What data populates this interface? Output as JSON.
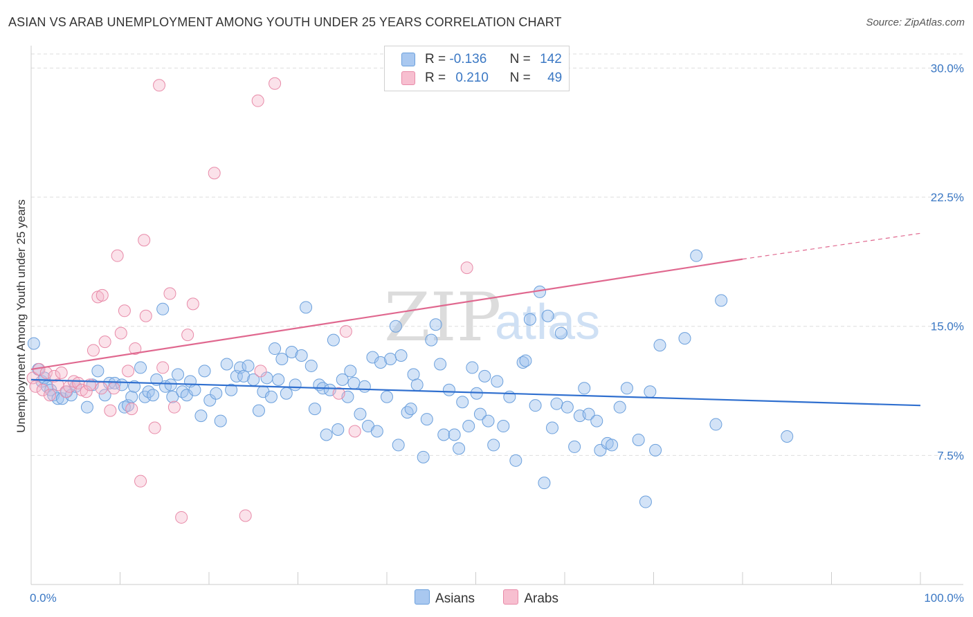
{
  "title": "ASIAN VS ARAB UNEMPLOYMENT AMONG YOUTH UNDER 25 YEARS CORRELATION CHART",
  "source": "Source: ZipAtlas.com",
  "watermark": {
    "zip": "ZIP",
    "atlas": "atlas"
  },
  "legend": {
    "rows": [
      {
        "r_label": "R =",
        "r_value": "-0.136",
        "n_label": "N =",
        "n_value": "142",
        "color": "#a9c8f0",
        "border": "#6a9fdc"
      },
      {
        "r_label": "R =",
        "r_value": "0.210",
        "n_label": "N =",
        "n_value": "49",
        "color": "#f7bfd0",
        "border": "#e88aa8"
      }
    ]
  },
  "bottom_legend": [
    {
      "label": "Asians",
      "color": "#a9c8f0",
      "border": "#6a9fdc"
    },
    {
      "label": "Arabs",
      "color": "#f7bfd0",
      "border": "#e88aa8"
    }
  ],
  "colors": {
    "asian_fill": "rgba(158,193,238,0.45)",
    "asian_stroke": "#6a9fdc",
    "asian_line": "#2f6fcf",
    "arab_fill": "rgba(246,182,202,0.40)",
    "arab_stroke": "#e88aa8",
    "arab_line": "#e0688f",
    "tick_label": "#3b78c4",
    "grid": "#dddddd"
  },
  "chart_data": {
    "type": "scatter",
    "title": "ASIAN VS ARAB UNEMPLOYMENT AMONG YOUTH UNDER 25 YEARS CORRELATION CHART",
    "xlabel": "",
    "ylabel": "Unemployment Among Youth under 25 years",
    "xlim": [
      0,
      100
    ],
    "ylim": [
      0,
      30.9
    ],
    "x_ticks": [
      "0.0%",
      "100.0%"
    ],
    "y_ticks": [
      {
        "value": 7.5,
        "label": "7.5%"
      },
      {
        "value": 15.0,
        "label": "15.0%"
      },
      {
        "value": 22.5,
        "label": "22.5%"
      },
      {
        "value": 30.0,
        "label": "30.0%"
      }
    ],
    "grid": true,
    "series": [
      {
        "name": "Asians",
        "points": [
          [
            0.3,
            14.0
          ],
          [
            0.8,
            12.5
          ],
          [
            1.2,
            11.8
          ],
          [
            1.5,
            12.0
          ],
          [
            1.8,
            11.5
          ],
          [
            2.2,
            11.3
          ],
          [
            2.5,
            11.0
          ],
          [
            3.0,
            10.8
          ],
          [
            3.5,
            10.8
          ],
          [
            4.0,
            11.2
          ],
          [
            4.5,
            11.0
          ],
          [
            5.0,
            11.5
          ],
          [
            6.3,
            10.3
          ],
          [
            6.9,
            11.6
          ],
          [
            7.5,
            12.4
          ],
          [
            8.3,
            11.0
          ],
          [
            8.8,
            11.7
          ],
          [
            9.4,
            11.7
          ],
          [
            10.2,
            11.6
          ],
          [
            10.5,
            10.3
          ],
          [
            10.9,
            10.4
          ],
          [
            11.3,
            10.9
          ],
          [
            11.6,
            11.5
          ],
          [
            12.3,
            12.6
          ],
          [
            12.8,
            10.9
          ],
          [
            13.2,
            11.2
          ],
          [
            13.7,
            11.0
          ],
          [
            14.1,
            11.9
          ],
          [
            14.8,
            16.0
          ],
          [
            15.1,
            11.5
          ],
          [
            15.7,
            11.6
          ],
          [
            15.9,
            10.9
          ],
          [
            16.5,
            12.2
          ],
          [
            17.0,
            11.2
          ],
          [
            17.5,
            11.0
          ],
          [
            17.9,
            11.8
          ],
          [
            18.4,
            11.3
          ],
          [
            19.1,
            9.8
          ],
          [
            19.5,
            12.4
          ],
          [
            20.1,
            10.7
          ],
          [
            20.8,
            11.1
          ],
          [
            21.3,
            9.5
          ],
          [
            22.0,
            12.8
          ],
          [
            22.5,
            11.3
          ],
          [
            23.1,
            12.1
          ],
          [
            23.5,
            12.6
          ],
          [
            23.9,
            12.1
          ],
          [
            24.4,
            12.7
          ],
          [
            25.0,
            11.9
          ],
          [
            25.6,
            10.1
          ],
          [
            26.1,
            11.2
          ],
          [
            26.5,
            12.0
          ],
          [
            27.0,
            10.9
          ],
          [
            27.4,
            13.7
          ],
          [
            27.8,
            11.9
          ],
          [
            28.2,
            13.1
          ],
          [
            28.7,
            11.1
          ],
          [
            29.3,
            13.5
          ],
          [
            29.7,
            11.6
          ],
          [
            30.4,
            13.3
          ],
          [
            30.9,
            16.1
          ],
          [
            31.5,
            12.7
          ],
          [
            31.9,
            10.2
          ],
          [
            32.4,
            11.6
          ],
          [
            32.8,
            11.4
          ],
          [
            33.2,
            8.7
          ],
          [
            33.6,
            11.3
          ],
          [
            34.0,
            14.2
          ],
          [
            34.5,
            9.0
          ],
          [
            35.0,
            11.9
          ],
          [
            35.6,
            10.9
          ],
          [
            35.9,
            12.4
          ],
          [
            36.3,
            11.7
          ],
          [
            37.0,
            9.9
          ],
          [
            37.5,
            11.5
          ],
          [
            37.9,
            9.2
          ],
          [
            38.4,
            13.2
          ],
          [
            38.9,
            8.9
          ],
          [
            39.3,
            12.9
          ],
          [
            40.0,
            10.9
          ],
          [
            40.4,
            13.1
          ],
          [
            41.0,
            15.0
          ],
          [
            41.3,
            8.1
          ],
          [
            41.6,
            13.3
          ],
          [
            42.3,
            10.0
          ],
          [
            42.7,
            10.2
          ],
          [
            43.0,
            12.2
          ],
          [
            43.4,
            11.6
          ],
          [
            44.1,
            7.4
          ],
          [
            44.5,
            9.6
          ],
          [
            45.0,
            14.2
          ],
          [
            45.5,
            15.1
          ],
          [
            46.0,
            12.8
          ],
          [
            46.4,
            8.7
          ],
          [
            47.0,
            11.3
          ],
          [
            47.6,
            8.7
          ],
          [
            48.1,
            7.9
          ],
          [
            48.5,
            10.6
          ],
          [
            49.2,
            9.2
          ],
          [
            49.6,
            12.6
          ],
          [
            50.1,
            11.1
          ],
          [
            50.5,
            9.9
          ],
          [
            51.0,
            12.1
          ],
          [
            51.4,
            9.5
          ],
          [
            52.0,
            8.1
          ],
          [
            52.4,
            11.8
          ],
          [
            53.1,
            9.2
          ],
          [
            53.8,
            10.9
          ],
          [
            54.5,
            7.2
          ],
          [
            55.3,
            12.9
          ],
          [
            55.6,
            13.0
          ],
          [
            56.1,
            15.4
          ],
          [
            56.7,
            10.4
          ],
          [
            57.2,
            17.0
          ],
          [
            57.7,
            5.9
          ],
          [
            58.1,
            15.6
          ],
          [
            58.6,
            9.1
          ],
          [
            59.1,
            10.5
          ],
          [
            59.6,
            14.6
          ],
          [
            60.3,
            10.3
          ],
          [
            61.1,
            8.0
          ],
          [
            61.7,
            9.8
          ],
          [
            62.2,
            11.4
          ],
          [
            62.7,
            9.9
          ],
          [
            63.6,
            9.5
          ],
          [
            64.0,
            7.8
          ],
          [
            64.8,
            8.2
          ],
          [
            65.3,
            8.1
          ],
          [
            66.2,
            10.3
          ],
          [
            67.0,
            11.4
          ],
          [
            68.3,
            8.4
          ],
          [
            69.1,
            4.8
          ],
          [
            69.6,
            11.2
          ],
          [
            70.2,
            7.8
          ],
          [
            70.7,
            13.9
          ],
          [
            73.5,
            14.3
          ],
          [
            74.8,
            19.1
          ],
          [
            77.0,
            9.3
          ],
          [
            77.6,
            16.5
          ],
          [
            85.0,
            8.6
          ]
        ]
      },
      {
        "name": "Arabs",
        "points": [
          [
            0.2,
            12.0
          ],
          [
            0.5,
            11.5
          ],
          [
            0.9,
            12.5
          ],
          [
            1.3,
            11.3
          ],
          [
            1.7,
            12.3
          ],
          [
            2.1,
            11.0
          ],
          [
            2.6,
            12.1
          ],
          [
            3.0,
            11.6
          ],
          [
            3.4,
            12.3
          ],
          [
            3.9,
            11.2
          ],
          [
            4.3,
            11.5
          ],
          [
            4.8,
            11.8
          ],
          [
            5.3,
            11.7
          ],
          [
            5.7,
            11.3
          ],
          [
            6.2,
            11.2
          ],
          [
            6.6,
            11.6
          ],
          [
            7.0,
            13.6
          ],
          [
            7.5,
            16.7
          ],
          [
            8.0,
            16.8
          ],
          [
            8.3,
            14.1
          ],
          [
            8.9,
            10.1
          ],
          [
            9.3,
            11.4
          ],
          [
            9.7,
            19.1
          ],
          [
            10.1,
            14.6
          ],
          [
            10.5,
            15.9
          ],
          [
            10.9,
            12.4
          ],
          [
            11.3,
            10.2
          ],
          [
            11.7,
            13.7
          ],
          [
            12.3,
            6.0
          ],
          [
            12.7,
            20.0
          ],
          [
            12.9,
            15.6
          ],
          [
            13.9,
            9.1
          ],
          [
            14.4,
            29.0
          ],
          [
            14.8,
            12.6
          ],
          [
            15.6,
            16.9
          ],
          [
            16.1,
            10.3
          ],
          [
            16.9,
            3.9
          ],
          [
            17.6,
            14.5
          ],
          [
            18.2,
            16.3
          ],
          [
            20.6,
            23.9
          ],
          [
            24.1,
            4.0
          ],
          [
            25.5,
            28.1
          ],
          [
            25.8,
            12.4
          ],
          [
            27.4,
            29.1
          ],
          [
            34.6,
            11.1
          ],
          [
            35.4,
            14.7
          ],
          [
            36.4,
            8.9
          ],
          [
            49.0,
            18.4
          ],
          [
            7.9,
            11.4
          ]
        ]
      }
    ],
    "trendlines": [
      {
        "series": "Asians",
        "from": [
          0,
          11.9
        ],
        "to": [
          100,
          10.4
        ]
      },
      {
        "series": "Arabs",
        "from": [
          0,
          12.5
        ],
        "to": [
          80,
          18.9
        ],
        "dashed_to": [
          100,
          20.4
        ]
      }
    ]
  }
}
